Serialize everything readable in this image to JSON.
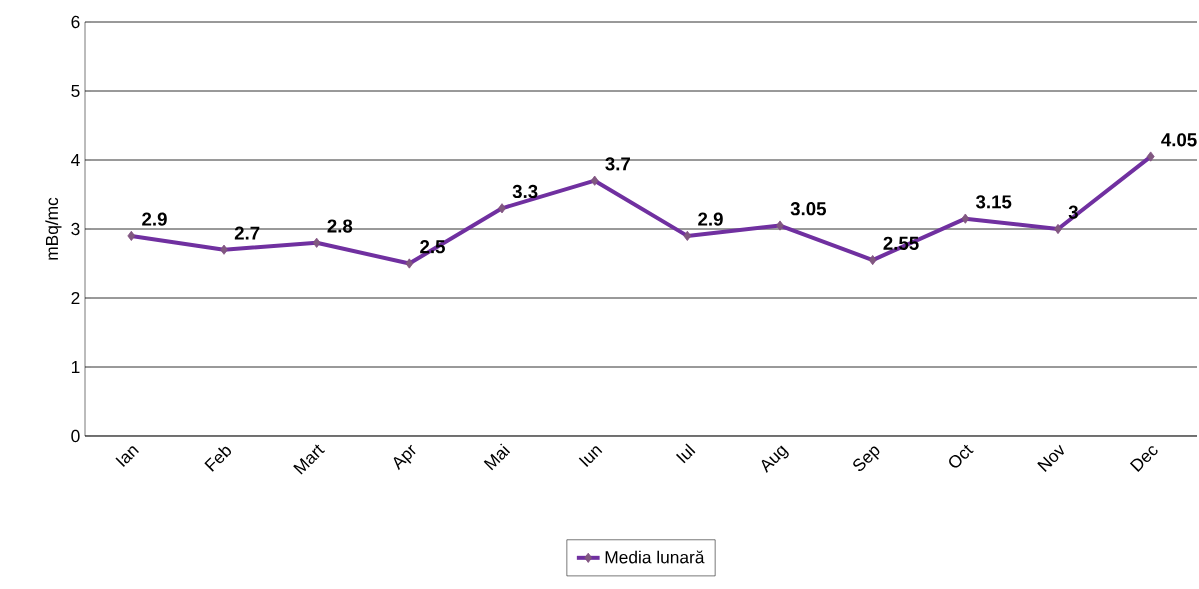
{
  "chart_data": {
    "type": "line",
    "ylabel": "mBq/mc",
    "categories": [
      "Ian",
      "Feb",
      "Mart",
      "Apr",
      "Mai",
      "Iun",
      "Iul",
      "Aug",
      "Sep",
      "Oct",
      "Nov",
      "Dec"
    ],
    "series": [
      {
        "name": "Media lunară",
        "color": "#7030a0",
        "values": [
          2.9,
          2.7,
          2.8,
          2.5,
          3.3,
          3.7,
          2.9,
          3.05,
          2.55,
          3.15,
          3,
          4.05
        ]
      }
    ],
    "ylim": [
      0,
      6
    ],
    "yticks": [
      0,
      1,
      2,
      3,
      4,
      5,
      6
    ],
    "grid": "y",
    "legend": "bottom",
    "marker": "diamond",
    "line_style": "solid",
    "data_labels": true
  }
}
